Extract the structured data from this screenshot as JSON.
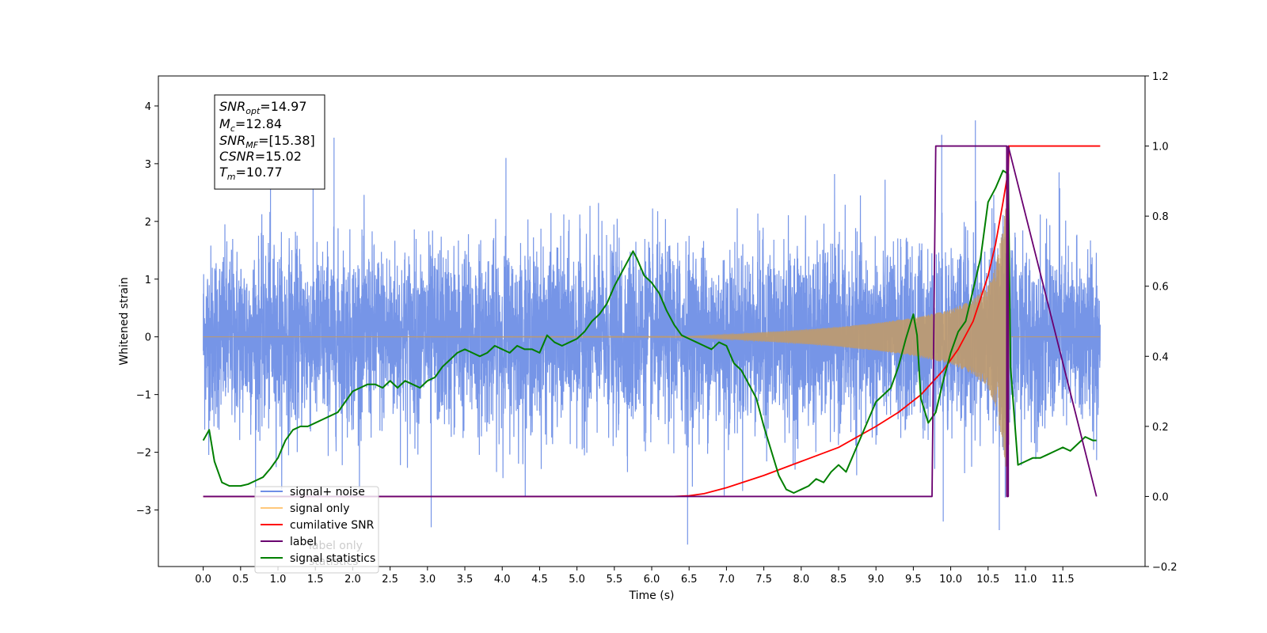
{
  "chart_data": {
    "type": "line",
    "title": "",
    "xlabel": "Time (s)",
    "ylabel": "Whitened strain",
    "y2label": "",
    "xlim": [
      -0.6,
      12.6
    ],
    "ylim": [
      -3.98,
      4.52
    ],
    "y2lim": [
      -0.2,
      1.2
    ],
    "x_ticks": [
      "0.0",
      "0.5",
      "1.0",
      "1.5",
      "2.0",
      "2.5",
      "3.0",
      "3.5",
      "4.0",
      "4.5",
      "5.0",
      "5.5",
      "6.0",
      "6.5",
      "7.0",
      "7.5",
      "8.0",
      "8.5",
      "9.0",
      "9.5",
      "10.0",
      "10.5",
      "11.0",
      "11.5"
    ],
    "y_ticks": [
      "−3",
      "−2",
      "−1",
      "0",
      "1",
      "2",
      "3",
      "4"
    ],
    "y2_ticks": [
      "−0.2",
      "0.0",
      "0.2",
      "0.4",
      "0.6",
      "0.8",
      "1.0",
      "1.2"
    ],
    "legend_position": "lower-left",
    "legend": [
      {
        "label": "signal+ noise",
        "color": "#6f8fe6"
      },
      {
        "label": "signal only",
        "color": "#ffc87a"
      },
      {
        "label": "cumilative SNR",
        "color": "#ff0000"
      },
      {
        "label": "label",
        "color": "#6a0070"
      },
      {
        "label": "signal statistics",
        "color": "#007f00"
      }
    ],
    "legend_obscured_text": [
      "label only",
      "statistics"
    ],
    "annotation": {
      "lines": [
        {
          "main": "SNR",
          "sub": "opt",
          "value": "=14.97"
        },
        {
          "main": "M",
          "sub": "c",
          "value": "=12.84"
        },
        {
          "main": "SNR",
          "sub": "MF",
          "value": "=[15.38]"
        },
        {
          "main": "CSNR",
          "sub": "",
          "value": "=15.02"
        },
        {
          "main": "T",
          "sub": "m",
          "value": "=10.77"
        }
      ]
    },
    "series": [
      {
        "name": "signal+ noise",
        "axis": "left",
        "color": "#6f8fe6",
        "x_range": [
          0.0,
          12.0
        ],
        "typical_range": [
          -2.3,
          2.3
        ],
        "max": 3.75,
        "min": -3.6
      },
      {
        "name": "signal only",
        "axis": "left",
        "color": "#c09a6b",
        "x_range": [
          0.0,
          12.0
        ],
        "envelope": {
          "x": [
            0.0,
            6.5,
            7.0,
            7.5,
            8.0,
            8.5,
            9.0,
            9.5,
            10.0,
            10.3,
            10.5,
            10.6,
            10.7,
            10.77,
            10.8,
            12.0
          ],
          "amp": [
            0.0,
            0.01,
            0.04,
            0.08,
            0.12,
            0.17,
            0.24,
            0.33,
            0.47,
            0.65,
            0.9,
            1.2,
            1.9,
            2.6,
            0.0,
            0.0
          ]
        }
      },
      {
        "name": "cumilative SNR",
        "axis": "right",
        "color": "#ff0000",
        "x": [
          0.0,
          6.3,
          6.5,
          6.7,
          7.0,
          7.5,
          8.0,
          8.5,
          9.0,
          9.3,
          9.6,
          9.9,
          10.1,
          10.3,
          10.5,
          10.6,
          10.7,
          10.77,
          10.78,
          12.0
        ],
        "y": [
          0.0,
          0.0,
          0.002,
          0.008,
          0.025,
          0.06,
          0.1,
          0.14,
          0.2,
          0.24,
          0.29,
          0.36,
          0.42,
          0.5,
          0.63,
          0.72,
          0.84,
          0.93,
          1.0,
          1.0
        ]
      },
      {
        "name": "label",
        "axis": "right",
        "color": "#6a0070",
        "x": [
          0.0,
          9.75,
          9.8,
          10.75,
          10.75,
          10.77,
          10.77,
          11.95
        ],
        "y": [
          0.0,
          0.0,
          1.0,
          1.0,
          0.0,
          0.0,
          1.0,
          0.0
        ]
      },
      {
        "name": "signal statistics",
        "axis": "right",
        "color": "#007f00",
        "x": [
          0.0,
          0.08,
          0.15,
          0.25,
          0.35,
          0.5,
          0.6,
          0.7,
          0.8,
          0.9,
          1.0,
          1.1,
          1.2,
          1.3,
          1.4,
          1.5,
          1.6,
          1.7,
          1.8,
          1.9,
          2.0,
          2.1,
          2.2,
          2.3,
          2.4,
          2.5,
          2.6,
          2.7,
          2.8,
          2.9,
          3.0,
          3.1,
          3.2,
          3.3,
          3.4,
          3.5,
          3.6,
          3.7,
          3.8,
          3.9,
          4.0,
          4.1,
          4.2,
          4.3,
          4.4,
          4.5,
          4.6,
          4.7,
          4.8,
          4.9,
          5.0,
          5.1,
          5.2,
          5.3,
          5.4,
          5.5,
          5.6,
          5.7,
          5.75,
          5.8,
          5.9,
          6.0,
          6.1,
          6.2,
          6.3,
          6.4,
          6.5,
          6.6,
          6.7,
          6.8,
          6.9,
          7.0,
          7.1,
          7.2,
          7.3,
          7.4,
          7.5,
          7.6,
          7.7,
          7.8,
          7.9,
          8.0,
          8.1,
          8.2,
          8.3,
          8.4,
          8.5,
          8.6,
          8.7,
          8.8,
          8.9,
          9.0,
          9.1,
          9.2,
          9.3,
          9.4,
          9.5,
          9.55,
          9.6,
          9.7,
          9.8,
          9.9,
          10.0,
          10.1,
          10.2,
          10.3,
          10.4,
          10.5,
          10.6,
          10.7,
          10.77,
          10.8,
          10.9,
          11.0,
          11.1,
          11.2,
          11.3,
          11.4,
          11.5,
          11.6,
          11.7,
          11.8,
          11.9,
          11.95
        ],
        "y": [
          0.16,
          0.19,
          0.1,
          0.04,
          0.03,
          0.03,
          0.035,
          0.045,
          0.055,
          0.08,
          0.11,
          0.16,
          0.19,
          0.2,
          0.2,
          0.21,
          0.22,
          0.23,
          0.24,
          0.27,
          0.3,
          0.31,
          0.32,
          0.32,
          0.31,
          0.33,
          0.31,
          0.33,
          0.32,
          0.31,
          0.33,
          0.34,
          0.37,
          0.39,
          0.41,
          0.42,
          0.41,
          0.4,
          0.41,
          0.43,
          0.42,
          0.41,
          0.43,
          0.42,
          0.42,
          0.41,
          0.46,
          0.44,
          0.43,
          0.44,
          0.45,
          0.47,
          0.5,
          0.52,
          0.55,
          0.6,
          0.64,
          0.68,
          0.7,
          0.68,
          0.63,
          0.61,
          0.58,
          0.53,
          0.49,
          0.46,
          0.45,
          0.44,
          0.43,
          0.42,
          0.44,
          0.43,
          0.38,
          0.36,
          0.32,
          0.28,
          0.2,
          0.13,
          0.06,
          0.02,
          0.01,
          0.02,
          0.03,
          0.05,
          0.04,
          0.07,
          0.09,
          0.07,
          0.12,
          0.17,
          0.22,
          0.27,
          0.29,
          0.31,
          0.37,
          0.45,
          0.52,
          0.46,
          0.28,
          0.21,
          0.24,
          0.33,
          0.41,
          0.47,
          0.5,
          0.59,
          0.68,
          0.84,
          0.88,
          0.93,
          0.92,
          0.37,
          0.09,
          0.1,
          0.11,
          0.11,
          0.12,
          0.13,
          0.14,
          0.13,
          0.15,
          0.17,
          0.16,
          0.16
        ]
      }
    ]
  }
}
